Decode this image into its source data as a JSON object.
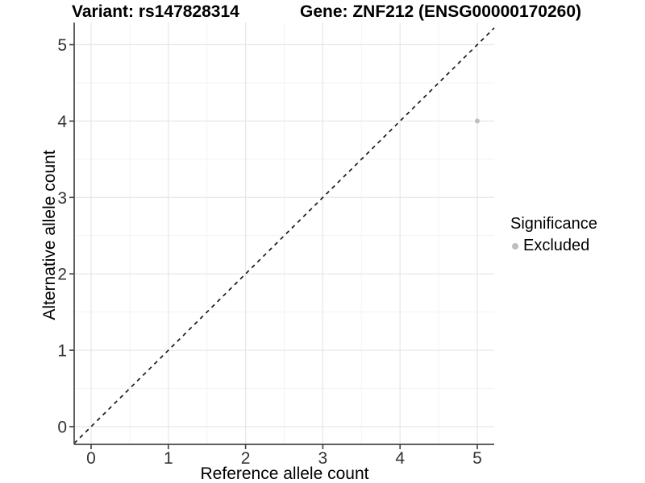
{
  "chart_data": {
    "type": "scatter",
    "title_left": "Variant: rs147828314",
    "title_right": "Gene: ZNF212 (ENSG00000170260)",
    "xlabel": "Reference allele count",
    "ylabel": "Alternative allele count",
    "xlim": [
      -0.22,
      5.22
    ],
    "ylim": [
      -0.23,
      5.29
    ],
    "xticks": [
      "0",
      "1",
      "2",
      "3",
      "4",
      "5"
    ],
    "yticks": [
      "0",
      "1",
      "2",
      "3",
      "4",
      "5"
    ],
    "grid": {
      "major": true,
      "minor": true,
      "minor_step": 0.5
    },
    "series": [
      {
        "name": "Excluded",
        "color": "#bebebe",
        "points": [
          [
            5,
            4
          ]
        ],
        "point_radius": 3
      }
    ],
    "reference_line": {
      "slope": 1,
      "intercept": 0,
      "style": "dashed",
      "color": "#1a1a1a"
    },
    "legend": {
      "position": "right",
      "title": "Significance",
      "entries": [
        {
          "label": "Excluded",
          "color": "#bebebe"
        }
      ]
    },
    "colors": {
      "panel_background": "#ffffff",
      "grid_major": "#e8e8e8",
      "grid_minor": "#f3f3f3",
      "axis_line": "#474747",
      "tick_text": "#333333"
    }
  }
}
